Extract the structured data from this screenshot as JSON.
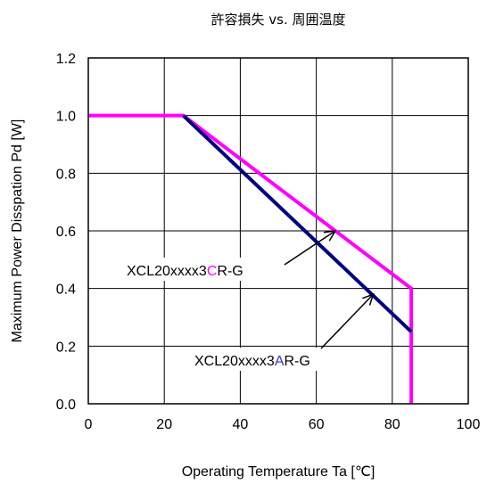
{
  "chart_data": {
    "type": "line",
    "title": "許容損失 vs. 周囲温度",
    "xlabel": "Operating Temperature Ta [℃]",
    "ylabel": "Maximum Power Disspation Pd [W]",
    "xlim": [
      0,
      100
    ],
    "ylim": [
      0,
      1.2
    ],
    "x_ticks": [
      "0",
      "20",
      "40",
      "60",
      "80",
      "100"
    ],
    "y_ticks": [
      "0.0",
      "0.2",
      "0.4",
      "0.6",
      "0.8",
      "1.0",
      "1.2"
    ],
    "grid": true,
    "series": [
      {
        "name": "XCL20xxxx3CR-G",
        "color": "#FF00FF",
        "x": [
          0,
          25,
          85,
          85
        ],
        "y": [
          1.0,
          1.0,
          0.4,
          0.0
        ]
      },
      {
        "name": "XCL20xxxx3AR-G",
        "color": "#000080",
        "x": [
          25,
          85
        ],
        "y": [
          1.0,
          0.25
        ]
      }
    ],
    "annotations": [
      {
        "series": "XCL20xxxx3CR-G",
        "label_parts": [
          "XCL20xxxx3",
          "C",
          "R-G"
        ],
        "highlight_color": "#FF00FF",
        "arrow_to": [
          65,
          0.6
        ]
      },
      {
        "series": "XCL20xxxx3AR-G",
        "label_parts": [
          "XCL20xxxx3",
          "A",
          "R-G"
        ],
        "highlight_color": "#3333CC",
        "arrow_to": [
          75,
          0.38
        ]
      }
    ]
  }
}
